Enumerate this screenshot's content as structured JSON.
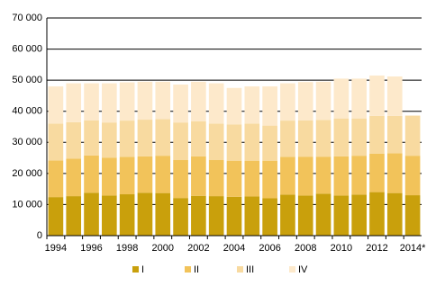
{
  "chart_data": {
    "type": "stacked-bar",
    "categories": [
      "1994",
      null,
      "1996",
      null,
      "1998",
      null,
      "2000",
      null,
      "2002",
      null,
      "2004",
      null,
      "2006",
      null,
      "2008",
      null,
      "2010",
      null,
      "2012",
      null,
      "2014*"
    ],
    "series": [
      {
        "name": "I",
        "color": "#c9a00c",
        "values": [
          12400,
          12700,
          13800,
          12900,
          13300,
          13800,
          13700,
          12100,
          12800,
          12700,
          12500,
          12600,
          12000,
          13200,
          12900,
          13500,
          12900,
          13200,
          14000,
          13700,
          13000
        ]
      },
      {
        "name": "II",
        "color": "#f2c35a",
        "values": [
          11800,
          12100,
          12000,
          12200,
          12000,
          11700,
          12000,
          12200,
          12700,
          11600,
          11600,
          11500,
          12100,
          12100,
          12500,
          11900,
          12600,
          12500,
          12400,
          12800,
          12700
        ]
      },
      {
        "name": "III",
        "color": "#f8daa0",
        "values": [
          11800,
          11700,
          11300,
          11300,
          11700,
          11800,
          11800,
          12100,
          11300,
          11700,
          11700,
          11900,
          11300,
          11700,
          11700,
          11800,
          12200,
          12000,
          12100,
          12000,
          12900
        ]
      },
      {
        "name": "IV",
        "color": "#fde9cb",
        "values": [
          12000,
          12500,
          11900,
          12600,
          12300,
          12200,
          12000,
          12200,
          12700,
          13000,
          11700,
          12000,
          12600,
          12000,
          12300,
          12300,
          12800,
          12800,
          13000,
          12700,
          null
        ]
      }
    ],
    "ylim": [
      0,
      70000
    ],
    "yticks": [
      0,
      {
        "value": 10000,
        "label": "10 000"
      },
      {
        "value": 20000,
        "label": "20 000"
      },
      {
        "value": 30000,
        "label": "30 000"
      },
      {
        "value": 40000,
        "label": "40 000"
      },
      {
        "value": 50000,
        "label": "50 000"
      },
      {
        "value": 60000,
        "label": "60 000"
      },
      {
        "value": 70000,
        "label": "70 000"
      }
    ],
    "grid": true,
    "legend": "bottom"
  }
}
